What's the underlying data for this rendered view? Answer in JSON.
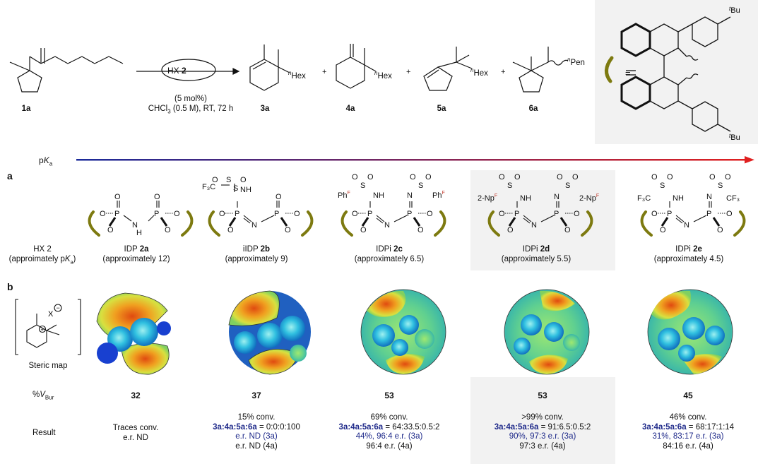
{
  "scheme": {
    "reagent": {
      "hx_prefix": "HX ",
      "hx_num": "2"
    },
    "conditions": {
      "loading": "(5 mol%)",
      "solvent_pre": "CHCl",
      "solvent_sub": "3",
      "solvent_post": " (0.5 M), RT, 72 h"
    },
    "compounds": [
      "1a",
      "3a",
      "4a",
      "5a",
      "6a"
    ],
    "plus": "+",
    "equals": "=",
    "sub_hex": "Hex",
    "sub_pen": "Pen",
    "sup_n": "n",
    "sup_t": "t",
    "bu": "Bu"
  },
  "pka_axis": {
    "label_pre": "p",
    "label_k": "K",
    "label_sub": "a"
  },
  "panel_labels": {
    "a": "a",
    "b": "b"
  },
  "row_a": {
    "hx_line1": "HX 2",
    "hx_line2_pre": "(approimately p",
    "hx_line2_k": "K",
    "hx_line2_sub": "a",
    "hx_line2_post": ")",
    "catalysts": [
      {
        "name": "IDP ",
        "id": "2a",
        "pka": "(approximately 12)"
      },
      {
        "name": "iIDP ",
        "id": "2b",
        "pka": "(approximately 9)"
      },
      {
        "name": "IDPi ",
        "id": "2c",
        "pka": "(approximately 6.5)"
      },
      {
        "name": "IDPi ",
        "id": "2d",
        "pka": "(approximately 5.5)"
      },
      {
        "name": "IDPi ",
        "id": "2e",
        "pka": "(approximately 4.5)"
      }
    ],
    "struct_labels": {
      "o": "O",
      "p": "P",
      "n": "N",
      "s": "S",
      "nh": "NH",
      "h": "H",
      "f3c": "F₃C",
      "cf3": "CF₃",
      "ph": "Ph",
      "np": "2-Np",
      "f": "F"
    }
  },
  "row_b": {
    "steric_map": "Steric map",
    "cation_x": "X",
    "vbur_label_pre": "%",
    "vbur_label_v": "V",
    "vbur_label_sub": "Bur",
    "vbur_values": [
      "32",
      "37",
      "53",
      "53",
      "45"
    ],
    "result_label": "Result",
    "results": [
      {
        "conv": "Traces conv.",
        "ratio_label": "",
        "ratio_value": "",
        "er3a": "e.r. ND",
        "er4a": ""
      },
      {
        "conv": "15% conv.",
        "ratio_label": "3a:4a:5a:6a",
        "ratio_value": " = 0:0:0:100",
        "er3a": "e.r. ND (3a)",
        "er4a": "e.r. ND (4a)"
      },
      {
        "conv": "69% conv.",
        "ratio_label": "3a:4a:5a:6a",
        "ratio_value": " = 64:33.5:0.5:2",
        "er3a": "44%, 96:4 e.r. (3a)",
        "er4a": "96:4 e.r. (4a)"
      },
      {
        "conv": ">99% conv.",
        "ratio_label": "3a:4a:5a:6a",
        "ratio_value": " = 91:6.5:0.5:2",
        "er3a": "90%, 97:3 e.r. (3a)",
        "er4a": "97:3 e.r. (4a)"
      },
      {
        "conv": "46% conv.",
        "ratio_label": "3a:4a:5a:6a",
        "ratio_value": " = 68:17:1:14",
        "er3a": "31%, 83:17 e.r. (3a)",
        "er4a": "84:16 e.r. (4a)"
      }
    ]
  },
  "colors": {
    "highlight": "#f2f2f2",
    "axis_start": "#1a2a9a",
    "axis_end": "#e02020",
    "olive": "#7d7a10",
    "blue_text": "#1f2a8a"
  }
}
